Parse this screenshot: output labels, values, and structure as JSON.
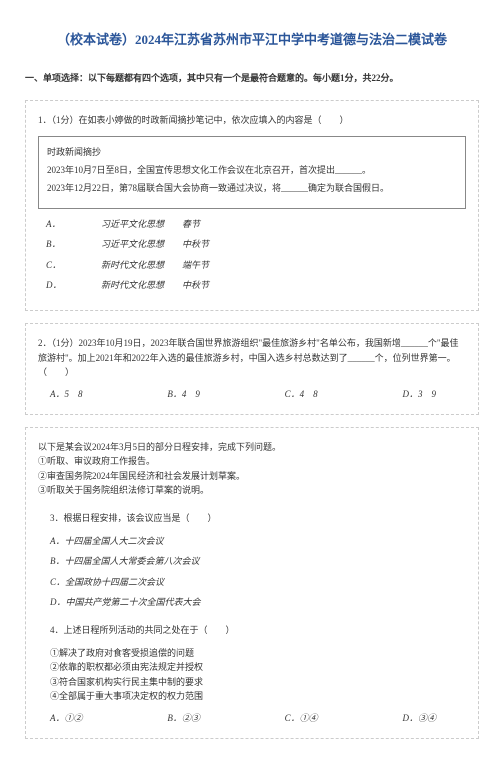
{
  "title": "（校本试卷）2024年江苏省苏州市平江中学中考道德与法治二模试卷",
  "section_header": "一、单项选择：以下每题都有四个选项，其中只有一个是最符合题意的。每小题1分，共22分。",
  "q1": {
    "stem": "1．（1分）在如表小婷做的时政新闻摘抄笔记中，依次应填入的内容是（　　）",
    "box": {
      "line1": "时政新闻摘抄",
      "line2": "2023年10月7日至8日，全国宣传思想文化工作会议在北京召开，首次提出______。",
      "line3": "2023年12月22日，第78届联合国大会协商一致通过决议，将______确定为联合国假日。"
    },
    "options": {
      "a": "习近平文化思想　　春节",
      "b": "习近平文化思想　　中秋节",
      "c": "新时代文化思想　　端午节",
      "d": "新时代文化思想　　中秋节"
    }
  },
  "q2": {
    "stem": "2．（1分）2023年10月19日，2023年联合国世界旅游组织\"最佳旅游乡村\"名单公布，我国新增______个\"最佳旅游村\"。加上2021年和2022年入选的最佳旅游乡村，中国入选乡村总数达到了______个，位列世界第一。（　　）",
    "options": {
      "a": "5　8",
      "b": "4　9",
      "c": "4　8",
      "d": "3　9"
    }
  },
  "q3": {
    "intro": "以下是某会议2024年3月5日的部分日程安排，完成下列问题。",
    "line1": "①听取、审议政府工作报告。",
    "line2": "②审查国务院2024年国民经济和社会发展计划草案。",
    "line3": "③听取关于国务院组织法修订草案的说明。",
    "sub1": {
      "stem": "3．根据日程安排，该会议应当是（　　）",
      "options": {
        "a": "十四届全国人大二次会议",
        "b": "十四届全国人大常委会第八次会议",
        "c": "全国政协十四届二次会议",
        "d": "中国共产党第二十次全国代表大会"
      }
    },
    "sub2": {
      "stem": "4．上述日程所列活动的共同之处在于（　　）",
      "line1": "①解决了政府对食客受损追偿的问题",
      "line2": "②依靠的职权都必须由宪法规定并授权",
      "line3": "③符合国家机构实行民主集中制的要求",
      "line4": "④全部属于重大事项决定权的权力范围",
      "options": {
        "a": "①②",
        "b": "②③",
        "c": "①④",
        "d": "③④"
      }
    }
  }
}
